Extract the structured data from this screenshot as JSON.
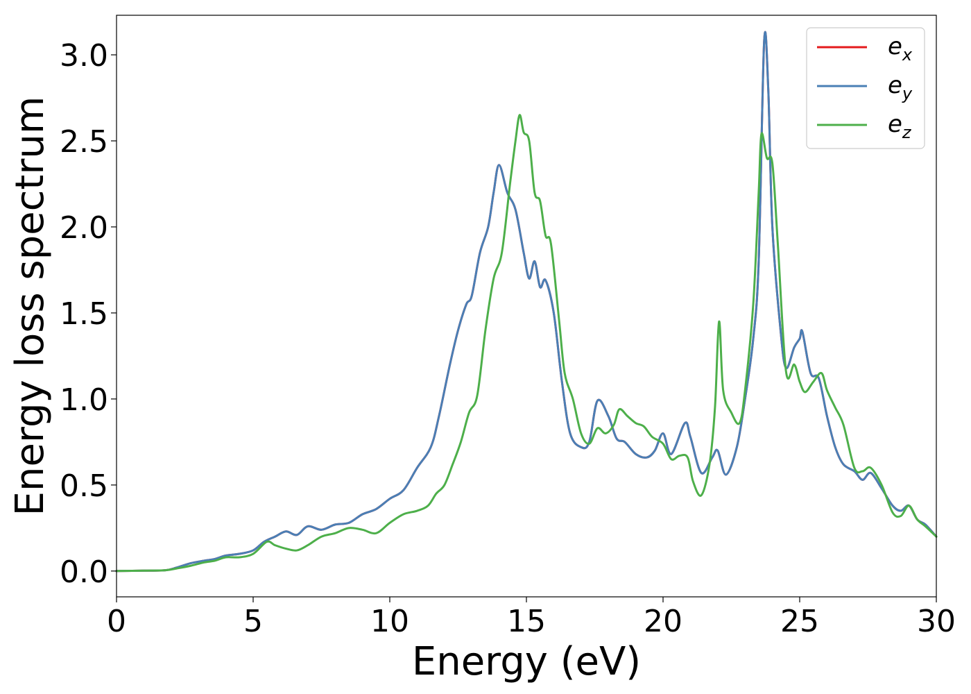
{
  "chart_data": {
    "type": "line",
    "title": "",
    "xlabel": "Energy (eV)",
    "ylabel": "Energy loss spectrum",
    "xlim": [
      0,
      30
    ],
    "ylim": [
      -0.15,
      3.23
    ],
    "xticks": [
      0,
      5,
      10,
      15,
      20,
      25,
      30
    ],
    "xtick_labels": [
      "0",
      "5",
      "10",
      "15",
      "20",
      "25",
      "30"
    ],
    "yticks": [
      0.0,
      0.5,
      1.0,
      1.5,
      2.0,
      2.5,
      3.0
    ],
    "ytick_labels": [
      "0.0",
      "0.5",
      "1.0",
      "1.5",
      "2.0",
      "2.5",
      "3.0"
    ],
    "grid": false,
    "legend_position": "top-right",
    "series": [
      {
        "name": "e_x",
        "label_base": "e",
        "label_sub": "x",
        "color": "#e41a1c",
        "points": [
          [
            0,
            0
          ],
          [
            1,
            0.002
          ],
          [
            1.8,
            0.005
          ],
          [
            2.2,
            0.02
          ],
          [
            2.7,
            0.045
          ],
          [
            3.2,
            0.06
          ],
          [
            3.6,
            0.07
          ],
          [
            4.0,
            0.09
          ],
          [
            4.5,
            0.1
          ],
          [
            5.0,
            0.12
          ],
          [
            5.4,
            0.17
          ],
          [
            5.8,
            0.2
          ],
          [
            6.2,
            0.23
          ],
          [
            6.6,
            0.21
          ],
          [
            7.0,
            0.26
          ],
          [
            7.5,
            0.24
          ],
          [
            8.0,
            0.27
          ],
          [
            8.5,
            0.28
          ],
          [
            9.0,
            0.33
          ],
          [
            9.5,
            0.36
          ],
          [
            10.0,
            0.42
          ],
          [
            10.5,
            0.47
          ],
          [
            11.0,
            0.6
          ],
          [
            11.5,
            0.72
          ],
          [
            11.8,
            0.9
          ],
          [
            12.2,
            1.2
          ],
          [
            12.5,
            1.4
          ],
          [
            12.8,
            1.55
          ],
          [
            13.0,
            1.6
          ],
          [
            13.3,
            1.85
          ],
          [
            13.6,
            2.0
          ],
          [
            13.8,
            2.2
          ],
          [
            14.0,
            2.36
          ],
          [
            14.3,
            2.2
          ],
          [
            14.6,
            2.1
          ],
          [
            14.9,
            1.85
          ],
          [
            15.1,
            1.7
          ],
          [
            15.3,
            1.8
          ],
          [
            15.5,
            1.65
          ],
          [
            15.7,
            1.69
          ],
          [
            16.0,
            1.5
          ],
          [
            16.3,
            1.1
          ],
          [
            16.6,
            0.8
          ],
          [
            17.0,
            0.72
          ],
          [
            17.3,
            0.75
          ],
          [
            17.6,
            0.99
          ],
          [
            18.0,
            0.9
          ],
          [
            18.3,
            0.77
          ],
          [
            18.6,
            0.75
          ],
          [
            19.0,
            0.68
          ],
          [
            19.4,
            0.66
          ],
          [
            19.7,
            0.7
          ],
          [
            20.0,
            0.8
          ],
          [
            20.3,
            0.68
          ],
          [
            20.8,
            0.86
          ],
          [
            21.0,
            0.78
          ],
          [
            21.4,
            0.57
          ],
          [
            21.8,
            0.66
          ],
          [
            22.0,
            0.7
          ],
          [
            22.3,
            0.56
          ],
          [
            22.7,
            0.72
          ],
          [
            23.0,
            1.0
          ],
          [
            23.3,
            1.35
          ],
          [
            23.5,
            1.8
          ],
          [
            23.7,
            3.08
          ],
          [
            23.85,
            2.8
          ],
          [
            24.0,
            2.0
          ],
          [
            24.3,
            1.4
          ],
          [
            24.5,
            1.18
          ],
          [
            24.8,
            1.3
          ],
          [
            25.0,
            1.35
          ],
          [
            25.1,
            1.39
          ],
          [
            25.4,
            1.15
          ],
          [
            25.7,
            1.12
          ],
          [
            26.0,
            0.9
          ],
          [
            26.3,
            0.72
          ],
          [
            26.6,
            0.62
          ],
          [
            27.0,
            0.58
          ],
          [
            27.3,
            0.53
          ],
          [
            27.6,
            0.57
          ],
          [
            28.0,
            0.48
          ],
          [
            28.4,
            0.38
          ],
          [
            28.7,
            0.35
          ],
          [
            29.0,
            0.38
          ],
          [
            29.3,
            0.3
          ],
          [
            29.6,
            0.27
          ],
          [
            30.0,
            0.2
          ]
        ]
      },
      {
        "name": "e_y",
        "label_base": "e",
        "label_sub": "y",
        "color": "#4a7fb5",
        "points": [
          [
            0,
            0
          ],
          [
            1,
            0.002
          ],
          [
            1.8,
            0.005
          ],
          [
            2.2,
            0.02
          ],
          [
            2.7,
            0.045
          ],
          [
            3.2,
            0.06
          ],
          [
            3.6,
            0.07
          ],
          [
            4.0,
            0.09
          ],
          [
            4.5,
            0.1
          ],
          [
            5.0,
            0.12
          ],
          [
            5.4,
            0.17
          ],
          [
            5.8,
            0.2
          ],
          [
            6.2,
            0.23
          ],
          [
            6.6,
            0.21
          ],
          [
            7.0,
            0.26
          ],
          [
            7.5,
            0.24
          ],
          [
            8.0,
            0.27
          ],
          [
            8.5,
            0.28
          ],
          [
            9.0,
            0.33
          ],
          [
            9.5,
            0.36
          ],
          [
            10.0,
            0.42
          ],
          [
            10.5,
            0.47
          ],
          [
            11.0,
            0.6
          ],
          [
            11.5,
            0.72
          ],
          [
            11.8,
            0.9
          ],
          [
            12.2,
            1.2
          ],
          [
            12.5,
            1.4
          ],
          [
            12.8,
            1.55
          ],
          [
            13.0,
            1.6
          ],
          [
            13.3,
            1.85
          ],
          [
            13.6,
            2.0
          ],
          [
            13.8,
            2.2
          ],
          [
            14.0,
            2.36
          ],
          [
            14.3,
            2.2
          ],
          [
            14.6,
            2.1
          ],
          [
            14.9,
            1.85
          ],
          [
            15.1,
            1.7
          ],
          [
            15.3,
            1.8
          ],
          [
            15.5,
            1.65
          ],
          [
            15.7,
            1.69
          ],
          [
            16.0,
            1.5
          ],
          [
            16.3,
            1.1
          ],
          [
            16.6,
            0.8
          ],
          [
            17.0,
            0.72
          ],
          [
            17.3,
            0.75
          ],
          [
            17.6,
            0.99
          ],
          [
            18.0,
            0.9
          ],
          [
            18.3,
            0.77
          ],
          [
            18.6,
            0.75
          ],
          [
            19.0,
            0.68
          ],
          [
            19.4,
            0.66
          ],
          [
            19.7,
            0.7
          ],
          [
            20.0,
            0.8
          ],
          [
            20.3,
            0.68
          ],
          [
            20.8,
            0.86
          ],
          [
            21.0,
            0.78
          ],
          [
            21.4,
            0.57
          ],
          [
            21.8,
            0.66
          ],
          [
            22.0,
            0.7
          ],
          [
            22.3,
            0.56
          ],
          [
            22.7,
            0.72
          ],
          [
            23.0,
            1.0
          ],
          [
            23.3,
            1.35
          ],
          [
            23.5,
            1.8
          ],
          [
            23.7,
            3.08
          ],
          [
            23.85,
            2.8
          ],
          [
            24.0,
            2.0
          ],
          [
            24.3,
            1.4
          ],
          [
            24.5,
            1.18
          ],
          [
            24.8,
            1.3
          ],
          [
            25.0,
            1.35
          ],
          [
            25.1,
            1.39
          ],
          [
            25.4,
            1.15
          ],
          [
            25.7,
            1.12
          ],
          [
            26.0,
            0.9
          ],
          [
            26.3,
            0.72
          ],
          [
            26.6,
            0.62
          ],
          [
            27.0,
            0.58
          ],
          [
            27.3,
            0.53
          ],
          [
            27.6,
            0.57
          ],
          [
            28.0,
            0.48
          ],
          [
            28.4,
            0.38
          ],
          [
            28.7,
            0.35
          ],
          [
            29.0,
            0.38
          ],
          [
            29.3,
            0.3
          ],
          [
            29.6,
            0.27
          ],
          [
            30.0,
            0.2
          ]
        ]
      },
      {
        "name": "e_z",
        "label_base": "e",
        "label_sub": "z",
        "color": "#4daf4a",
        "points": [
          [
            0,
            0
          ],
          [
            1,
            0.002
          ],
          [
            1.8,
            0.005
          ],
          [
            2.2,
            0.015
          ],
          [
            2.7,
            0.03
          ],
          [
            3.2,
            0.05
          ],
          [
            3.6,
            0.06
          ],
          [
            4.0,
            0.08
          ],
          [
            4.5,
            0.08
          ],
          [
            5.0,
            0.1
          ],
          [
            5.5,
            0.17
          ],
          [
            5.8,
            0.15
          ],
          [
            6.2,
            0.13
          ],
          [
            6.6,
            0.12
          ],
          [
            7.0,
            0.15
          ],
          [
            7.5,
            0.2
          ],
          [
            8.0,
            0.22
          ],
          [
            8.5,
            0.25
          ],
          [
            9.0,
            0.24
          ],
          [
            9.5,
            0.22
          ],
          [
            10.0,
            0.28
          ],
          [
            10.5,
            0.33
          ],
          [
            11.0,
            0.35
          ],
          [
            11.4,
            0.38
          ],
          [
            11.7,
            0.45
          ],
          [
            12.0,
            0.5
          ],
          [
            12.3,
            0.62
          ],
          [
            12.6,
            0.75
          ],
          [
            12.9,
            0.92
          ],
          [
            13.2,
            1.02
          ],
          [
            13.5,
            1.4
          ],
          [
            13.8,
            1.7
          ],
          [
            14.1,
            1.85
          ],
          [
            14.4,
            2.25
          ],
          [
            14.6,
            2.5
          ],
          [
            14.75,
            2.65
          ],
          [
            14.9,
            2.55
          ],
          [
            15.1,
            2.5
          ],
          [
            15.3,
            2.2
          ],
          [
            15.5,
            2.15
          ],
          [
            15.7,
            1.95
          ],
          [
            15.9,
            1.9
          ],
          [
            16.2,
            1.45
          ],
          [
            16.4,
            1.15
          ],
          [
            16.7,
            1.0
          ],
          [
            17.0,
            0.8
          ],
          [
            17.3,
            0.74
          ],
          [
            17.6,
            0.83
          ],
          [
            17.9,
            0.8
          ],
          [
            18.2,
            0.85
          ],
          [
            18.4,
            0.94
          ],
          [
            18.7,
            0.9
          ],
          [
            19.0,
            0.86
          ],
          [
            19.3,
            0.84
          ],
          [
            19.6,
            0.78
          ],
          [
            20.0,
            0.74
          ],
          [
            20.3,
            0.65
          ],
          [
            20.6,
            0.67
          ],
          [
            20.9,
            0.66
          ],
          [
            21.1,
            0.52
          ],
          [
            21.4,
            0.44
          ],
          [
            21.7,
            0.62
          ],
          [
            21.9,
            0.95
          ],
          [
            22.05,
            1.45
          ],
          [
            22.2,
            1.05
          ],
          [
            22.5,
            0.92
          ],
          [
            22.8,
            0.86
          ],
          [
            23.0,
            1.05
          ],
          [
            23.3,
            1.55
          ],
          [
            23.5,
            2.2
          ],
          [
            23.6,
            2.54
          ],
          [
            23.8,
            2.4
          ],
          [
            24.0,
            2.37
          ],
          [
            24.2,
            1.9
          ],
          [
            24.5,
            1.16
          ],
          [
            24.8,
            1.2
          ],
          [
            25.0,
            1.1
          ],
          [
            25.2,
            1.04
          ],
          [
            25.5,
            1.1
          ],
          [
            25.8,
            1.15
          ],
          [
            26.0,
            1.05
          ],
          [
            26.3,
            0.95
          ],
          [
            26.6,
            0.85
          ],
          [
            27.0,
            0.6
          ],
          [
            27.3,
            0.58
          ],
          [
            27.6,
            0.6
          ],
          [
            28.0,
            0.5
          ],
          [
            28.4,
            0.34
          ],
          [
            28.7,
            0.32
          ],
          [
            29.0,
            0.38
          ],
          [
            29.3,
            0.3
          ],
          [
            29.6,
            0.26
          ],
          [
            30.0,
            0.2
          ]
        ]
      }
    ]
  }
}
